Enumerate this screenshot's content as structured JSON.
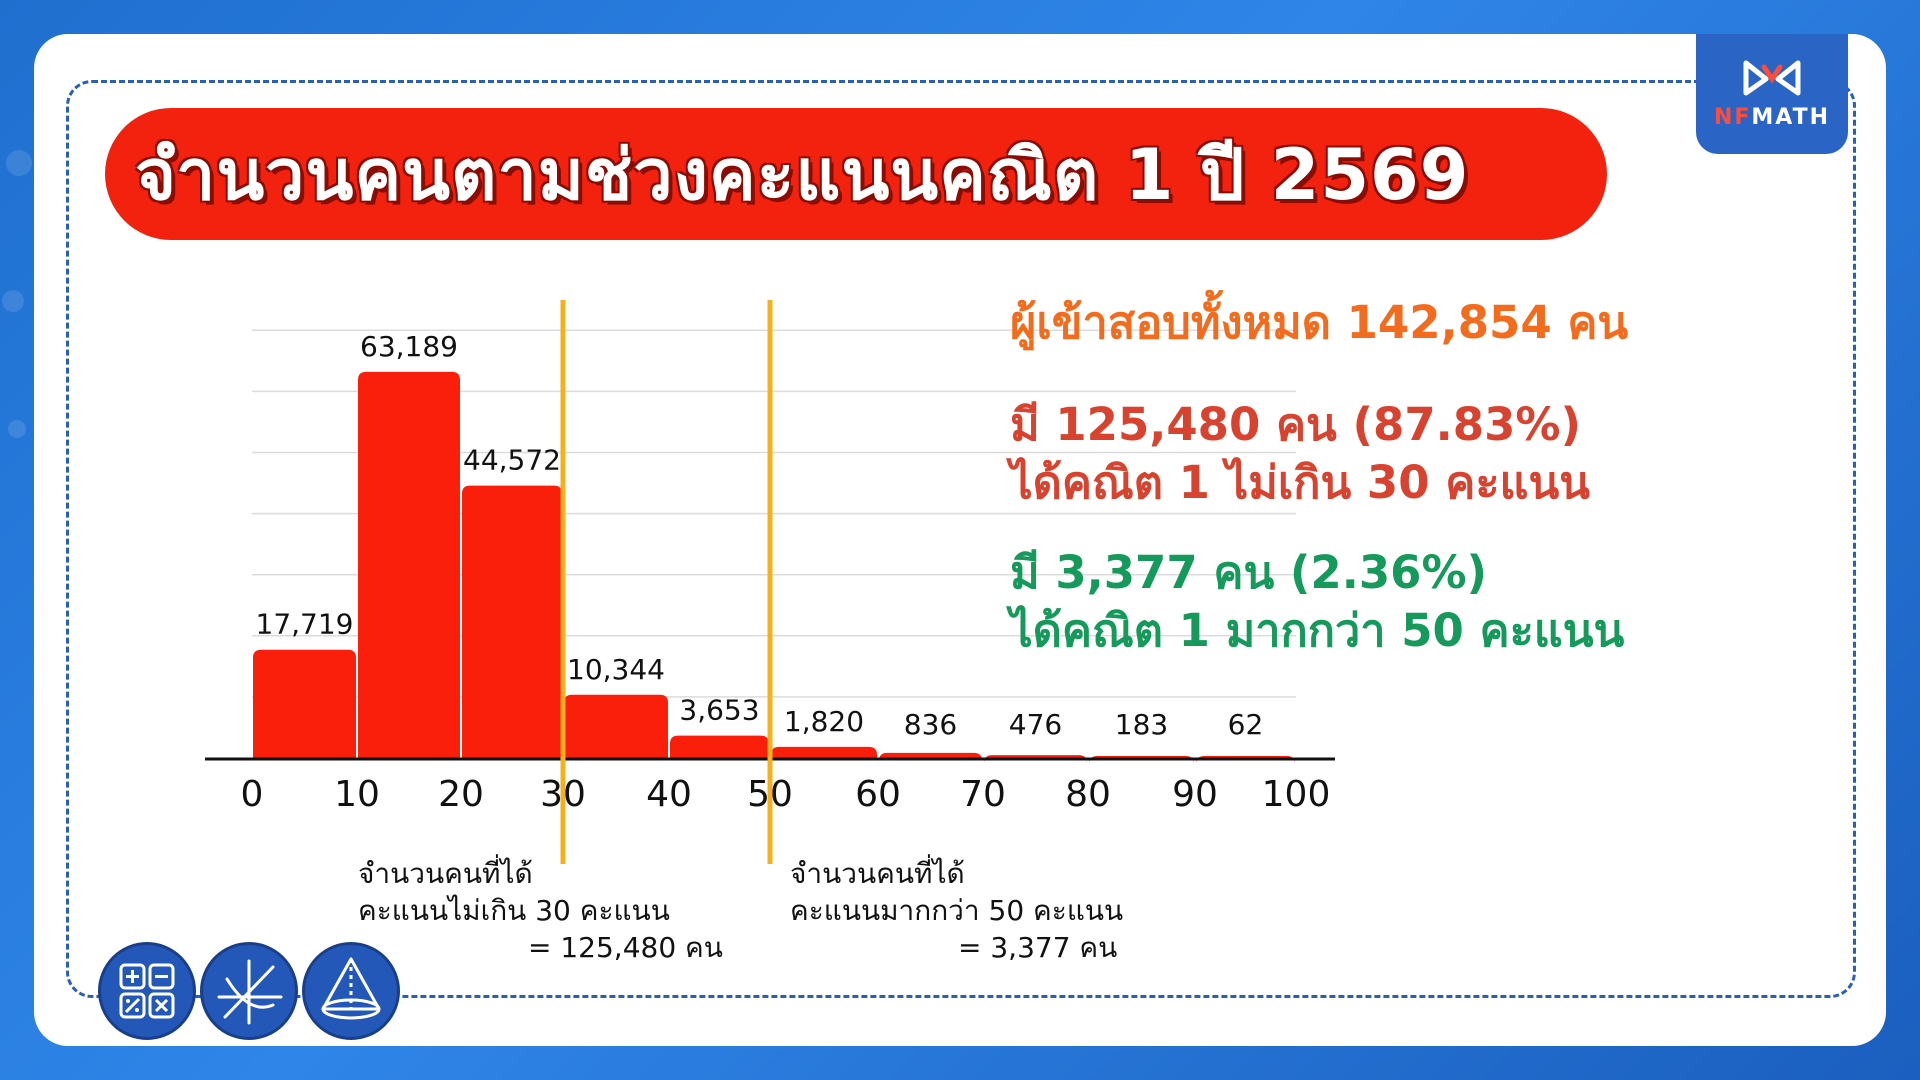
{
  "title": "จำนวนคนตามช่วงคะแนนคณิต 1 ปี 2569",
  "logo": {
    "text_prefix": "NF",
    "text_suffix": "MATH"
  },
  "info": {
    "total": "ผู้เข้าสอบทั้งหมด 142,854 คน",
    "low_line1": "มี 125,480 คน (87.83%)",
    "low_line2": "ได้คณิต 1 ไม่เกิน 30 คะแนน",
    "high_line1": "มี 3,377 คน (2.36%)",
    "high_line2": "ได้คณิต 1 มากกว่า 50 คะแนน"
  },
  "notes": {
    "low_line1": "จำนวนคนที่ได้",
    "low_line2": "คะแนนไม่เกิน 30 คะแนน",
    "low_sum": "= 125,480 คน",
    "high_line1": "จำนวนคนที่ได้",
    "high_line2": "คะแนนมากกว่า 50 คะแนน",
    "high_sum": "= 3,377 คน"
  },
  "colors": {
    "bar": "#fa1f0a",
    "marker": "#f5b01e",
    "title_bg": "#f2220f",
    "total_text": "#f36b1c",
    "low_text": "#d7432f",
    "high_text": "#159a5b"
  },
  "icons": [
    "calculator-icon",
    "graph-axes-icon",
    "cone-icon"
  ],
  "chart_data": {
    "type": "bar",
    "title": "",
    "xlabel": "",
    "ylabel": "",
    "bins": [
      {
        "from": 0,
        "to": 10,
        "value": 17719,
        "label": "17,719"
      },
      {
        "from": 10,
        "to": 20,
        "value": 63189,
        "label": "63,189"
      },
      {
        "from": 20,
        "to": 30,
        "value": 44572,
        "label": "44,572"
      },
      {
        "from": 30,
        "to": 40,
        "value": 10344,
        "label": "10,344"
      },
      {
        "from": 40,
        "to": 50,
        "value": 3653,
        "label": "3,653"
      },
      {
        "from": 50,
        "to": 60,
        "value": 1820,
        "label": "1,820"
      },
      {
        "from": 60,
        "to": 70,
        "value": 836,
        "label": "836"
      },
      {
        "from": 70,
        "to": 80,
        "value": 476,
        "label": "476"
      },
      {
        "from": 80,
        "to": 90,
        "value": 183,
        "label": "183"
      },
      {
        "from": 90,
        "to": 100,
        "value": 62,
        "label": "62"
      }
    ],
    "x_ticks": [
      "0",
      "10",
      "20",
      "30",
      "40",
      "50",
      "60",
      "70",
      "80",
      "90",
      "100"
    ],
    "xlim": [
      0,
      100
    ],
    "ylim": [
      0,
      70000
    ],
    "grid": true,
    "markers": [
      30,
      50
    ]
  }
}
